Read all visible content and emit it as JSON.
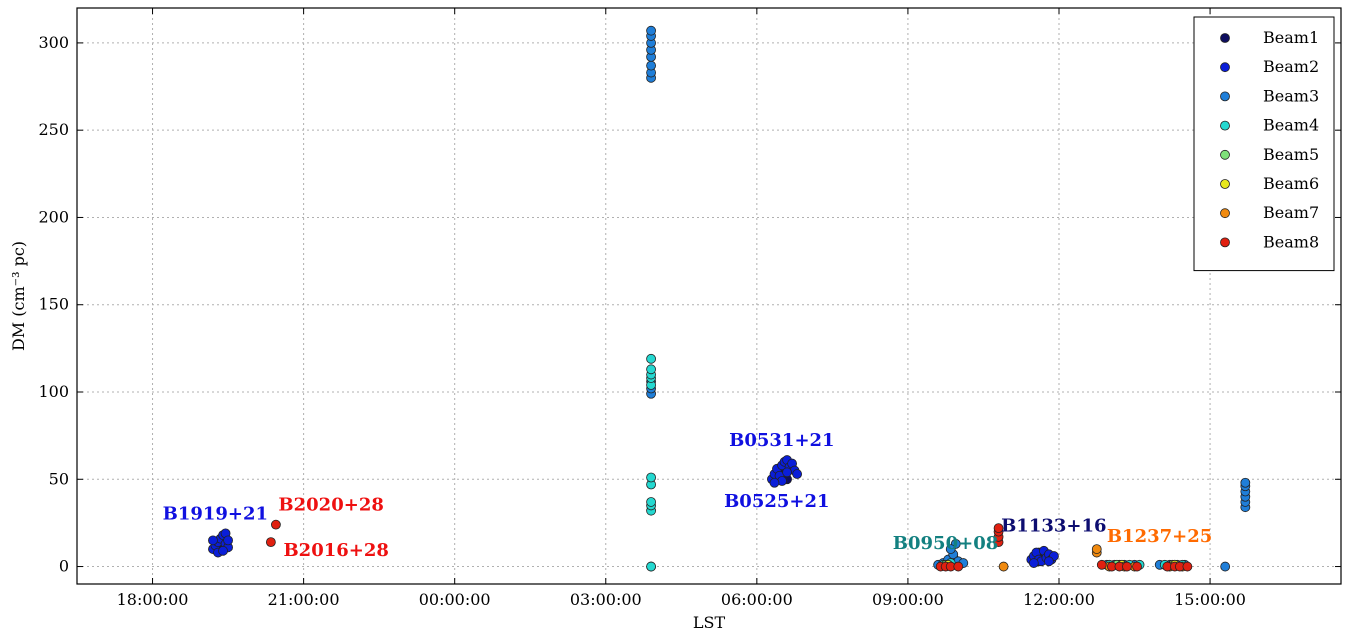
{
  "chart_data": {
    "type": "scatter",
    "xlabel": "LST",
    "ylabel": "DM (cm⁻³ pc)",
    "ylim": [
      -10,
      320
    ],
    "xlim_hours": [
      16.5,
      41.6
    ],
    "x_ticks": [
      {
        "value": 18,
        "label": "18:00:00"
      },
      {
        "value": 21,
        "label": "21:00:00"
      },
      {
        "value": 24,
        "label": "00:00:00"
      },
      {
        "value": 27,
        "label": "03:00:00"
      },
      {
        "value": 30,
        "label": "06:00:00"
      },
      {
        "value": 33,
        "label": "09:00:00"
      },
      {
        "value": 36,
        "label": "12:00:00"
      },
      {
        "value": 39,
        "label": "15:00:00"
      }
    ],
    "y_ticks": [
      0,
      50,
      100,
      150,
      200,
      250,
      300
    ],
    "grid": true,
    "legend_position": "top-right",
    "series": [
      {
        "name": "Beam1",
        "color": "#0d0d5e",
        "points": [
          [
            19.35,
            9
          ],
          [
            19.35,
            13
          ],
          [
            19.4,
            16
          ],
          [
            19.3,
            11
          ],
          [
            30.5,
            52
          ],
          [
            30.55,
            56
          ],
          [
            30.6,
            50
          ],
          [
            35.6,
            3
          ],
          [
            35.65,
            5
          ],
          [
            35.7,
            7
          ],
          [
            35.6,
            8
          ],
          [
            33.85,
            4
          ],
          [
            33.9,
            6
          ]
        ]
      },
      {
        "name": "Beam2",
        "color": "#0a1ed8",
        "points": [
          [
            19.2,
            10
          ],
          [
            19.25,
            12
          ],
          [
            19.3,
            14
          ],
          [
            19.35,
            16
          ],
          [
            19.4,
            18
          ],
          [
            19.45,
            13
          ],
          [
            19.5,
            11
          ],
          [
            19.3,
            8
          ],
          [
            19.4,
            9
          ],
          [
            19.2,
            15
          ],
          [
            19.45,
            19
          ],
          [
            19.5,
            15
          ],
          [
            30.3,
            50
          ],
          [
            30.35,
            53
          ],
          [
            30.4,
            56
          ],
          [
            30.45,
            52
          ],
          [
            30.5,
            58
          ],
          [
            30.55,
            60
          ],
          [
            30.6,
            61
          ],
          [
            30.65,
            57
          ],
          [
            30.7,
            59
          ],
          [
            30.75,
            55
          ],
          [
            30.8,
            53
          ],
          [
            30.6,
            54
          ],
          [
            30.5,
            49
          ],
          [
            30.35,
            48
          ],
          [
            35.45,
            4
          ],
          [
            35.5,
            6
          ],
          [
            35.55,
            8
          ],
          [
            35.6,
            4
          ],
          [
            35.65,
            3
          ],
          [
            35.7,
            9
          ],
          [
            35.75,
            5
          ],
          [
            35.8,
            7
          ],
          [
            35.85,
            4
          ],
          [
            35.9,
            6
          ],
          [
            35.5,
            2
          ],
          [
            35.8,
            3
          ]
        ]
      },
      {
        "name": "Beam3",
        "color": "#1f7ed8",
        "points": [
          [
            27.9,
            0
          ],
          [
            27.9,
            99
          ],
          [
            27.9,
            102
          ],
          [
            27.9,
            106
          ],
          [
            27.9,
            280
          ],
          [
            27.9,
            283
          ],
          [
            27.9,
            287
          ],
          [
            27.9,
            292
          ],
          [
            27.9,
            296
          ],
          [
            27.9,
            300
          ],
          [
            27.9,
            304
          ],
          [
            27.9,
            307
          ],
          [
            33.6,
            1
          ],
          [
            33.7,
            2
          ],
          [
            33.8,
            4
          ],
          [
            33.9,
            7
          ],
          [
            33.95,
            13
          ],
          [
            33.85,
            10
          ],
          [
            34.0,
            3
          ],
          [
            34.1,
            2
          ],
          [
            36.95,
            1
          ],
          [
            37.1,
            1
          ],
          [
            37.3,
            1
          ],
          [
            37.5,
            1
          ],
          [
            38.0,
            1
          ],
          [
            38.2,
            1
          ],
          [
            38.35,
            1
          ],
          [
            38.5,
            1
          ],
          [
            39.3,
            0
          ],
          [
            39.7,
            34
          ],
          [
            39.7,
            37
          ],
          [
            39.7,
            40
          ],
          [
            39.7,
            43
          ],
          [
            39.7,
            46
          ],
          [
            39.7,
            48
          ]
        ]
      },
      {
        "name": "Beam4",
        "color": "#24d8d0",
        "points": [
          [
            27.9,
            32
          ],
          [
            27.9,
            35
          ],
          [
            27.9,
            37
          ],
          [
            27.9,
            47
          ],
          [
            27.9,
            51
          ],
          [
            27.9,
            104
          ],
          [
            27.9,
            108
          ],
          [
            27.9,
            110
          ],
          [
            27.9,
            113
          ],
          [
            27.9,
            119
          ],
          [
            27.9,
            0
          ],
          [
            33.7,
            1
          ],
          [
            33.85,
            2
          ],
          [
            37.0,
            1
          ],
          [
            37.2,
            1
          ],
          [
            37.4,
            1
          ],
          [
            37.6,
            1
          ],
          [
            38.1,
            1
          ],
          [
            38.3,
            1
          ],
          [
            38.45,
            1
          ]
        ]
      },
      {
        "name": "Beam5",
        "color": "#7fe07a",
        "points": [
          [
            33.75,
            1
          ],
          [
            37.15,
            1
          ],
          [
            38.25,
            1
          ]
        ]
      },
      {
        "name": "Beam6",
        "color": "#e8e81e",
        "points": [
          [
            33.8,
            1
          ],
          [
            37.25,
            1
          ],
          [
            38.3,
            1
          ]
        ]
      },
      {
        "name": "Beam7",
        "color": "#f08a10",
        "points": [
          [
            34.9,
            0
          ],
          [
            36.75,
            8
          ],
          [
            36.75,
            10
          ],
          [
            37.0,
            0
          ],
          [
            37.3,
            0
          ],
          [
            37.5,
            0
          ],
          [
            38.2,
            0
          ],
          [
            38.45,
            0
          ]
        ]
      },
      {
        "name": "Beam8",
        "color": "#e02010",
        "points": [
          [
            20.35,
            14
          ],
          [
            20.45,
            24
          ],
          [
            33.65,
            0
          ],
          [
            33.75,
            0
          ],
          [
            33.85,
            0
          ],
          [
            34.0,
            0
          ],
          [
            34.8,
            14
          ],
          [
            34.8,
            17
          ],
          [
            34.8,
            20
          ],
          [
            34.8,
            22
          ],
          [
            36.85,
            1
          ],
          [
            37.05,
            0
          ],
          [
            37.2,
            0
          ],
          [
            37.35,
            0
          ],
          [
            37.55,
            0
          ],
          [
            38.15,
            0
          ],
          [
            38.3,
            0
          ],
          [
            38.4,
            0
          ],
          [
            38.55,
            0
          ]
        ]
      }
    ],
    "annotations": [
      {
        "text": "B1919+21",
        "color": "#1010e0",
        "x": 18.2,
        "y": 27
      },
      {
        "text": "B2020+28",
        "color": "#ee1010",
        "x": 20.5,
        "y": 32
      },
      {
        "text": "B2016+28",
        "color": "#ee1010",
        "x": 20.6,
        "y": 6
      },
      {
        "text": "B0531+21",
        "color": "#1010e0",
        "x": 29.45,
        "y": 69
      },
      {
        "text": "B0525+21",
        "color": "#1010e0",
        "x": 29.35,
        "y": 34
      },
      {
        "text": "B0950+08",
        "color": "#138080",
        "x": 32.7,
        "y": 10
      },
      {
        "text": "B1133+16",
        "color": "#0d0d70",
        "x": 34.85,
        "y": 20
      },
      {
        "text": "B1237+25",
        "color": "#ff6a00",
        "x": 36.95,
        "y": 14
      }
    ]
  }
}
